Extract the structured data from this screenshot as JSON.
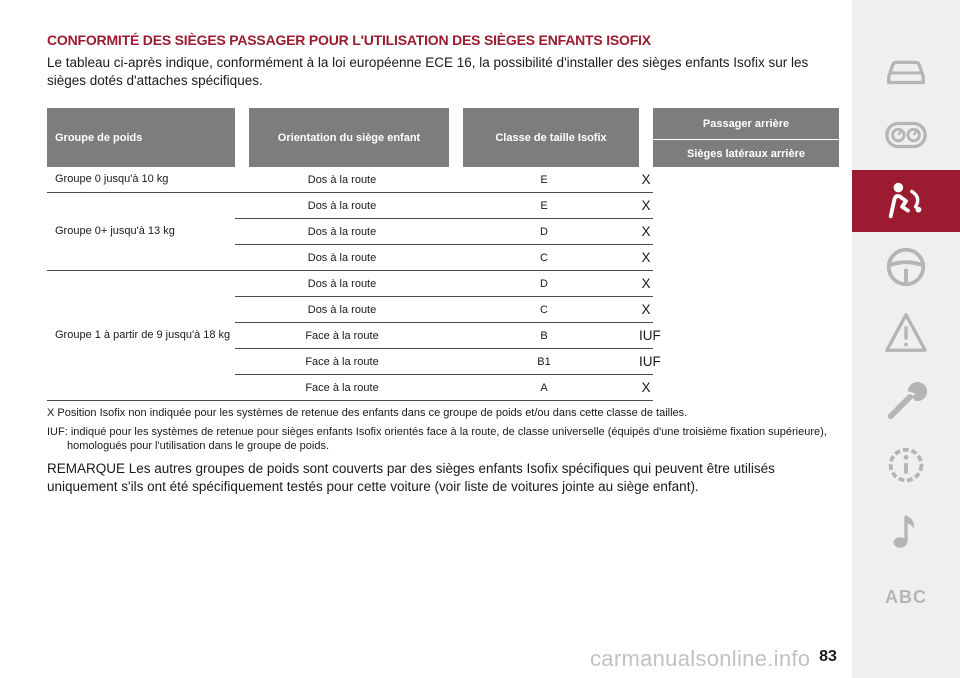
{
  "section": {
    "title": "CONFORMITÉ DES SIÈGES PASSAGER POUR L'UTILISATION DES SIÈGES ENFANTS ISOFIX",
    "intro": "Le tableau ci-après indique, conformément à la loi européenne ECE 16, la possibilité d'installer des sièges enfants Isofix sur les sièges dotés d'attaches spécifiques."
  },
  "table": {
    "headers": {
      "weight_group": "Groupe de poids",
      "orientation": "Orientation du siège enfant",
      "size_class": "Classe de taille Isofix",
      "rear_passenger": "Passager arrière",
      "rear_side_seats": "Sièges latéraux arrière"
    },
    "groups": [
      {
        "label": "Groupe 0 jusqu'à 10 kg",
        "rows": [
          {
            "orientation": "Dos à la route",
            "size_class": "E",
            "rear": "X"
          }
        ]
      },
      {
        "label": "Groupe 0+ jusqu'à 13 kg",
        "rows": [
          {
            "orientation": "Dos à la route",
            "size_class": "E",
            "rear": "X"
          },
          {
            "orientation": "Dos à la route",
            "size_class": "D",
            "rear": "X"
          },
          {
            "orientation": "Dos à la route",
            "size_class": "C",
            "rear": "X"
          }
        ]
      },
      {
        "label": "Groupe 1 à partir de 9 jusqu'à 18 kg",
        "rows": [
          {
            "orientation": "Dos à la route",
            "size_class": "D",
            "rear": "X"
          },
          {
            "orientation": "Dos à la route",
            "size_class": "C",
            "rear": "X"
          },
          {
            "orientation": "Face à la route",
            "size_class": "B",
            "rear": "IUF"
          },
          {
            "orientation": "Face à la route",
            "size_class": "B1",
            "rear": "IUF"
          },
          {
            "orientation": "Face à la route",
            "size_class": "A",
            "rear": "X"
          }
        ]
      }
    ]
  },
  "footnotes": {
    "x_note": "X Position Isofix non indiquée pour les systèmes de retenue des enfants dans ce groupe de poids et/ou dans cette classe de tailles.",
    "iuf_note": "IUF: indiqué pour les systèmes de retenue pour sièges enfants Isofix orientés face à la route, de classe universelle (équipés d'une troisième fixation supérieure), homologués pour l'utilisation dans le groupe de poids."
  },
  "remark": "REMARQUE Les autres groupes de poids sont couverts par des sièges enfants Isofix spécifiques qui peuvent être utilisés uniquement s'ils ont été spécifiquement testés pour cette voiture (voir liste de voitures jointe au siège enfant).",
  "sidebar": {
    "items": [
      {
        "icon": "car-icon",
        "active": false
      },
      {
        "icon": "dashboard-icon",
        "active": false
      },
      {
        "icon": "airbag-passenger-icon",
        "active": true
      },
      {
        "icon": "steering-wheel-icon",
        "active": false
      },
      {
        "icon": "warning-triangle-icon",
        "active": false
      },
      {
        "icon": "wrench-icon",
        "active": false
      },
      {
        "icon": "info-gear-icon",
        "active": false
      },
      {
        "icon": "music-note-icon",
        "active": false
      },
      {
        "icon": "abc-icon",
        "label": "ABC",
        "active": false
      }
    ],
    "colors": {
      "background": "#efefef",
      "active": "#9b1b30",
      "icon": "#b5b5b5"
    }
  },
  "page_number": "83",
  "watermark": "carmanualsonline.info"
}
